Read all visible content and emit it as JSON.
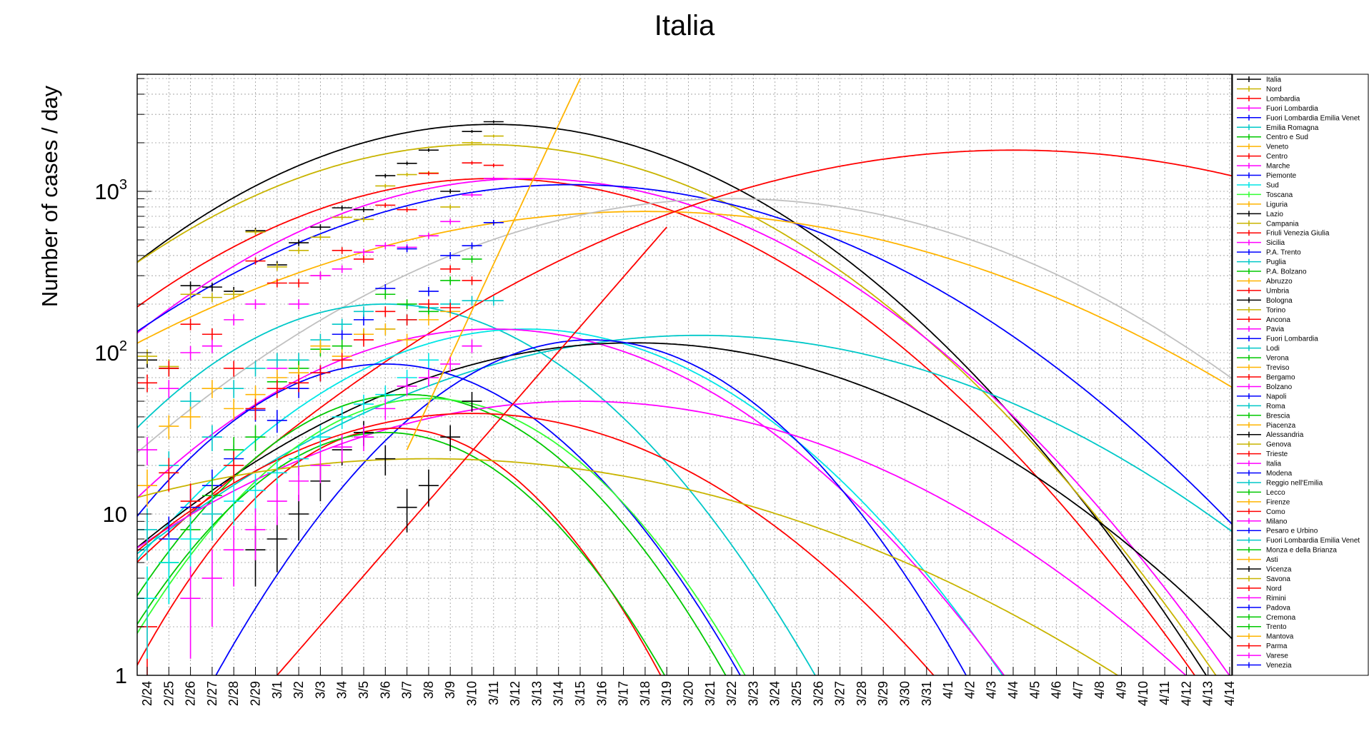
{
  "chart_data": {
    "type": "scatter",
    "title": "Italia",
    "xlabel": "",
    "ylabel": "Number of cases / day",
    "y_scale": "log",
    "ylim": [
      1,
      6000
    ],
    "x_tick_labels": [
      "2/24",
      "2/25",
      "2/26",
      "2/27",
      "2/28",
      "2/29",
      "3/1",
      "3/2",
      "3/3",
      "3/4",
      "3/5",
      "3/6",
      "3/7",
      "3/8",
      "3/9",
      "3/10",
      "3/11",
      "3/12",
      "3/13",
      "3/14",
      "3/15",
      "3/16",
      "3/17",
      "3/18",
      "3/19",
      "3/20",
      "3/21",
      "3/22",
      "3/23",
      "3/24",
      "3/25",
      "3/26",
      "3/27",
      "3/28",
      "3/29",
      "3/30",
      "3/31",
      "4/1",
      "4/2",
      "4/3",
      "4/4",
      "4/5",
      "4/6",
      "4/7",
      "4/8",
      "4/9",
      "4/10",
      "4/11",
      "4/12",
      "4/13",
      "4/14"
    ],
    "y_ticks": [
      {
        "value": 1,
        "base": "1",
        "exp": ""
      },
      {
        "value": 10,
        "base": "10",
        "exp": ""
      },
      {
        "value": 100,
        "base": "10",
        "exp": "2"
      },
      {
        "value": 1000,
        "base": "10",
        "exp": "3"
      }
    ],
    "grid": true,
    "legend_position": "right",
    "legend": [
      {
        "name": "Italia",
        "color": "#000000"
      },
      {
        "name": "Nord",
        "color": "#c8b400"
      },
      {
        "name": "Lombardia",
        "color": "#ff0000"
      },
      {
        "name": "Fuori Lombardia",
        "color": "#ff00ff"
      },
      {
        "name": "Fuori Lombardia Emilia Venet",
        "color": "#0000ff"
      },
      {
        "name": "Emilia Romagna",
        "color": "#00c8c8"
      },
      {
        "name": "Centro e Sud",
        "color": "#00c800"
      },
      {
        "name": "Veneto",
        "color": "#ffb400"
      },
      {
        "name": "Centro",
        "color": "#ff0000"
      },
      {
        "name": "Marche",
        "color": "#ff00ff"
      },
      {
        "name": "Piemonte",
        "color": "#0000ff"
      },
      {
        "name": "Sud",
        "color": "#00e6e6"
      },
      {
        "name": "Toscana",
        "color": "#33ff33"
      },
      {
        "name": "Liguria",
        "color": "#ffb400"
      },
      {
        "name": "Lazio",
        "color": "#000000"
      },
      {
        "name": "Campania",
        "color": "#c8b400"
      },
      {
        "name": "Friuli Venezia Giulia",
        "color": "#ff0000"
      },
      {
        "name": "Sicilia",
        "color": "#ff00ff"
      },
      {
        "name": "P.A. Trento",
        "color": "#0000ff"
      },
      {
        "name": "Puglia",
        "color": "#00c8c8"
      },
      {
        "name": "P.A. Bolzano",
        "color": "#00c800"
      },
      {
        "name": "Abruzzo",
        "color": "#ffb400"
      },
      {
        "name": "Umbria",
        "color": "#ff0000"
      },
      {
        "name": "Bologna",
        "color": "#000000"
      },
      {
        "name": "Torino",
        "color": "#c8b400"
      },
      {
        "name": "Ancona",
        "color": "#ff0000"
      },
      {
        "name": "Pavia",
        "color": "#ff00ff"
      },
      {
        "name": "Fuori Lombardia",
        "color": "#0000ff"
      },
      {
        "name": "Lodi",
        "color": "#00c8c8"
      },
      {
        "name": "Verona",
        "color": "#00c800"
      },
      {
        "name": "Treviso",
        "color": "#ffb400"
      },
      {
        "name": "Bergamo",
        "color": "#ff0000"
      },
      {
        "name": "Bolzano",
        "color": "#ff00ff"
      },
      {
        "name": "Napoli",
        "color": "#0000ff"
      },
      {
        "name": "Roma",
        "color": "#00c8c8"
      },
      {
        "name": "Brescia",
        "color": "#00c800"
      },
      {
        "name": "Piacenza",
        "color": "#ffb400"
      },
      {
        "name": "Alessandria",
        "color": "#000000"
      },
      {
        "name": "Genova",
        "color": "#c8b400"
      },
      {
        "name": "Trieste",
        "color": "#ff0000"
      },
      {
        "name": "Italia",
        "color": "#ff00ff"
      },
      {
        "name": "Modena",
        "color": "#0000ff"
      },
      {
        "name": "Reggio nell'Emilia",
        "color": "#00c8c8"
      },
      {
        "name": "Lecco",
        "color": "#00c800"
      },
      {
        "name": "Firenze",
        "color": "#ffb400"
      },
      {
        "name": "Como",
        "color": "#ff0000"
      },
      {
        "name": "Milano",
        "color": "#ff00ff"
      },
      {
        "name": "Pesaro e Urbino",
        "color": "#0000ff"
      },
      {
        "name": "Fuori Lombardia Emilia Venet",
        "color": "#00c8c8"
      },
      {
        "name": "Monza e della Brianza",
        "color": "#00c800"
      },
      {
        "name": "Asti",
        "color": "#ffb400"
      },
      {
        "name": "Vicenza",
        "color": "#000000"
      },
      {
        "name": "Savona",
        "color": "#c8b400"
      },
      {
        "name": "Nord",
        "color": "#ff0000"
      },
      {
        "name": "Rimini",
        "color": "#ff00ff"
      },
      {
        "name": "Padova",
        "color": "#0000ff"
      },
      {
        "name": "Cremona",
        "color": "#00c800"
      },
      {
        "name": "Trento",
        "color": "#00c800"
      },
      {
        "name": "Mantova",
        "color": "#ffb400"
      },
      {
        "name": "Parma",
        "color": "#ff0000"
      },
      {
        "name": "Varese",
        "color": "#ff00ff"
      },
      {
        "name": "Venezia",
        "color": "#0000ff"
      }
    ],
    "fit_curves": [
      {
        "color": "#000000",
        "peak": 2600,
        "peak_x": 16.0,
        "width": 8.3
      },
      {
        "color": "#c8b400",
        "peak": 1950,
        "peak_x": 15.5,
        "width": 8.7
      },
      {
        "color": "#ff0000",
        "peak": 1200,
        "peak_x": 16.0,
        "width": 8.6
      },
      {
        "color": "#ff00ff",
        "peak": 1200,
        "peak_x": 17.6,
        "width": 8.6
      },
      {
        "color": "#0000ff",
        "peak": 1100,
        "peak_x": 19.6,
        "width": 9.8
      },
      {
        "color": "#ffb400",
        "peak": 750,
        "peak_x": 23.0,
        "width": 12.1
      },
      {
        "color": "#c0c0c0",
        "peak": 900,
        "peak_x": 27.0,
        "width": 10.2
      },
      {
        "color": "#ff0000",
        "peak": 1800,
        "peak_x": 40.0,
        "width": 11.8
      },
      {
        "color": "#00c8c8",
        "peak": 200,
        "peak_x": 11.0,
        "width": 6.1
      },
      {
        "color": "#00e6e6",
        "peak": 140,
        "peak_x": 17.5,
        "width": 7.0
      },
      {
        "color": "#00c8c8",
        "peak": 128,
        "peak_x": 25.5,
        "width": 10.4
      },
      {
        "color": "#ff00ff",
        "peak": 140,
        "peak_x": 16.0,
        "width": 7.5
      },
      {
        "color": "#000000",
        "peak": 115,
        "peak_x": 22.5,
        "width": 9.5
      },
      {
        "color": "#0000ff",
        "peak": 120,
        "peak_x": 20.5,
        "width": 5.6
      },
      {
        "color": "#0000ff",
        "peak": 85,
        "peak_x": 11.0,
        "width": 5.5
      },
      {
        "color": "#00c800",
        "peak": 55,
        "peak_x": 12.0,
        "width": 5.2
      },
      {
        "color": "#33ff33",
        "peak": 52,
        "peak_x": 13.0,
        "width": 5.2
      },
      {
        "color": "#ff00ff",
        "peak": 50,
        "peak_x": 20.0,
        "width": 10.0
      },
      {
        "color": "#ff0000",
        "peak": 42,
        "peak_x": 15.0,
        "width": 7.8
      },
      {
        "color": "#ff0000",
        "peak": 34,
        "peak_x": 11.5,
        "width": 4.6
      },
      {
        "color": "#00c800",
        "peak": 32,
        "peak_x": 11.0,
        "width": 4.9
      },
      {
        "color": "#c8b400",
        "peak": 22,
        "peak_x": 13.0,
        "width": 12.8
      }
    ],
    "steep_curve": {
      "color": "#ffb400",
      "x": [
        12.0,
        20.0
      ],
      "y": [
        25.0,
        5000.0
      ]
    },
    "rising_curve": {
      "color": "#ff0000",
      "x": [
        6.0,
        24.0
      ],
      "y": [
        1.0,
        600.0
      ]
    },
    "points": [
      {
        "color": "#000000",
        "points": [
          [
            0,
            90
          ],
          [
            1,
            80
          ],
          [
            2,
            260
          ],
          [
            3,
            255
          ],
          [
            4,
            240
          ],
          [
            5,
            570
          ],
          [
            6,
            350
          ],
          [
            7,
            480
          ],
          [
            8,
            600
          ],
          [
            9,
            790
          ],
          [
            10,
            770
          ],
          [
            11,
            1250
          ],
          [
            12,
            1490
          ],
          [
            13,
            1800
          ],
          [
            14,
            1000
          ],
          [
            15,
            2350
          ],
          [
            16,
            2700
          ]
        ]
      },
      {
        "color": "#c8b400",
        "points": [
          [
            0,
            95
          ],
          [
            1,
            82
          ],
          [
            2,
            230
          ],
          [
            3,
            220
          ],
          [
            4,
            230
          ],
          [
            5,
            560
          ],
          [
            6,
            340
          ],
          [
            7,
            430
          ],
          [
            8,
            520
          ],
          [
            9,
            690
          ],
          [
            10,
            670
          ],
          [
            11,
            1080
          ],
          [
            12,
            1270
          ],
          [
            13,
            1300
          ],
          [
            14,
            800
          ],
          [
            15,
            2000
          ],
          [
            16,
            2200
          ]
        ]
      },
      {
        "color": "#ff0000",
        "points": [
          [
            0,
            65
          ],
          [
            1,
            80
          ],
          [
            2,
            150
          ],
          [
            3,
            130
          ],
          [
            4,
            80
          ],
          [
            5,
            370
          ],
          [
            6,
            270
          ],
          [
            7,
            270
          ],
          [
            8,
            300
          ],
          [
            9,
            430
          ],
          [
            10,
            380
          ],
          [
            11,
            820
          ],
          [
            12,
            770
          ],
          [
            13,
            1290
          ],
          [
            14,
            330
          ],
          [
            15,
            1500
          ],
          [
            16,
            1450
          ]
        ]
      },
      {
        "color": "#ff00ff",
        "points": [
          [
            0,
            25
          ],
          [
            1,
            60
          ],
          [
            2,
            100
          ],
          [
            3,
            110
          ],
          [
            4,
            160
          ],
          [
            5,
            200
          ],
          [
            6,
            80
          ],
          [
            7,
            200
          ],
          [
            8,
            300
          ],
          [
            9,
            330
          ],
          [
            10,
            420
          ],
          [
            11,
            460
          ],
          [
            12,
            450
          ],
          [
            13,
            530
          ],
          [
            14,
            650
          ],
          [
            15,
            950
          ],
          [
            16,
            1200
          ]
        ]
      },
      {
        "color": "#0000ff",
        "points": [
          [
            1,
            7
          ],
          [
            2,
            11
          ],
          [
            3,
            15
          ],
          [
            4,
            22
          ],
          [
            5,
            44
          ],
          [
            6,
            38
          ],
          [
            7,
            60
          ],
          [
            8,
            75
          ],
          [
            9,
            130
          ],
          [
            10,
            160
          ],
          [
            11,
            250
          ],
          [
            12,
            440
          ],
          [
            13,
            240
          ],
          [
            14,
            400
          ],
          [
            15,
            460
          ],
          [
            16,
            640
          ]
        ]
      },
      {
        "color": "#00c8c8",
        "points": [
          [
            0,
            8
          ],
          [
            1,
            20
          ],
          [
            2,
            50
          ],
          [
            3,
            30
          ],
          [
            4,
            60
          ],
          [
            5,
            80
          ],
          [
            6,
            90
          ],
          [
            7,
            90
          ],
          [
            8,
            120
          ],
          [
            9,
            150
          ],
          [
            10,
            180
          ],
          [
            11,
            140
          ],
          [
            12,
            160
          ],
          [
            13,
            190
          ],
          [
            14,
            200
          ],
          [
            15,
            210
          ],
          [
            16,
            210
          ]
        ]
      },
      {
        "color": "#00c800",
        "points": [
          [
            1,
            5
          ],
          [
            2,
            8
          ],
          [
            3,
            13
          ],
          [
            4,
            25
          ],
          [
            5,
            30
          ],
          [
            6,
            66
          ],
          [
            7,
            80
          ],
          [
            8,
            105
          ],
          [
            9,
            110
          ],
          [
            10,
            130
          ],
          [
            11,
            230
          ],
          [
            12,
            200
          ],
          [
            13,
            180
          ],
          [
            14,
            280
          ],
          [
            15,
            380
          ]
        ]
      },
      {
        "color": "#ffb400",
        "points": [
          [
            0,
            15
          ],
          [
            1,
            35
          ],
          [
            2,
            40
          ],
          [
            3,
            60
          ],
          [
            4,
            45
          ],
          [
            5,
            55
          ],
          [
            6,
            70
          ],
          [
            7,
            75
          ],
          [
            8,
            110
          ],
          [
            9,
            95
          ],
          [
            10,
            130
          ],
          [
            11,
            140
          ],
          [
            12,
            120
          ],
          [
            13,
            160
          ],
          [
            14,
            180
          ]
        ]
      },
      {
        "color": "#ff0000",
        "points": [
          [
            0,
            2
          ],
          [
            1,
            18
          ],
          [
            2,
            12
          ],
          [
            3,
            10
          ],
          [
            4,
            20
          ],
          [
            5,
            45
          ],
          [
            6,
            60
          ],
          [
            7,
            65
          ],
          [
            8,
            75
          ],
          [
            9,
            90
          ],
          [
            10,
            120
          ],
          [
            11,
            180
          ],
          [
            12,
            160
          ],
          [
            13,
            200
          ],
          [
            14,
            190
          ],
          [
            15,
            280
          ]
        ]
      },
      {
        "color": "#00e6e6",
        "points": [
          [
            0,
            3
          ],
          [
            1,
            5
          ],
          [
            2,
            7
          ],
          [
            3,
            10
          ],
          [
            4,
            12
          ],
          [
            5,
            14
          ],
          [
            6,
            18
          ],
          [
            7,
            22
          ],
          [
            8,
            30
          ],
          [
            9,
            40
          ],
          [
            10,
            48
          ],
          [
            11,
            55
          ],
          [
            12,
            70
          ],
          [
            13,
            90
          ]
        ]
      },
      {
        "color": "#000000",
        "points": [
          [
            5,
            6
          ],
          [
            6,
            7
          ],
          [
            7,
            10
          ],
          [
            8,
            16
          ],
          [
            9,
            25
          ],
          [
            10,
            32
          ],
          [
            11,
            22
          ],
          [
            12,
            11
          ],
          [
            13,
            15
          ],
          [
            14,
            30
          ],
          [
            15,
            50
          ]
        ]
      },
      {
        "color": "#ff00ff",
        "points": [
          [
            2,
            3
          ],
          [
            3,
            4
          ],
          [
            4,
            6
          ],
          [
            5,
            8
          ],
          [
            6,
            12
          ],
          [
            7,
            16
          ],
          [
            8,
            20
          ],
          [
            9,
            26
          ],
          [
            10,
            30
          ],
          [
            11,
            45
          ],
          [
            12,
            62
          ],
          [
            13,
            70
          ],
          [
            14,
            85
          ],
          [
            15,
            110
          ]
        ]
      }
    ]
  }
}
